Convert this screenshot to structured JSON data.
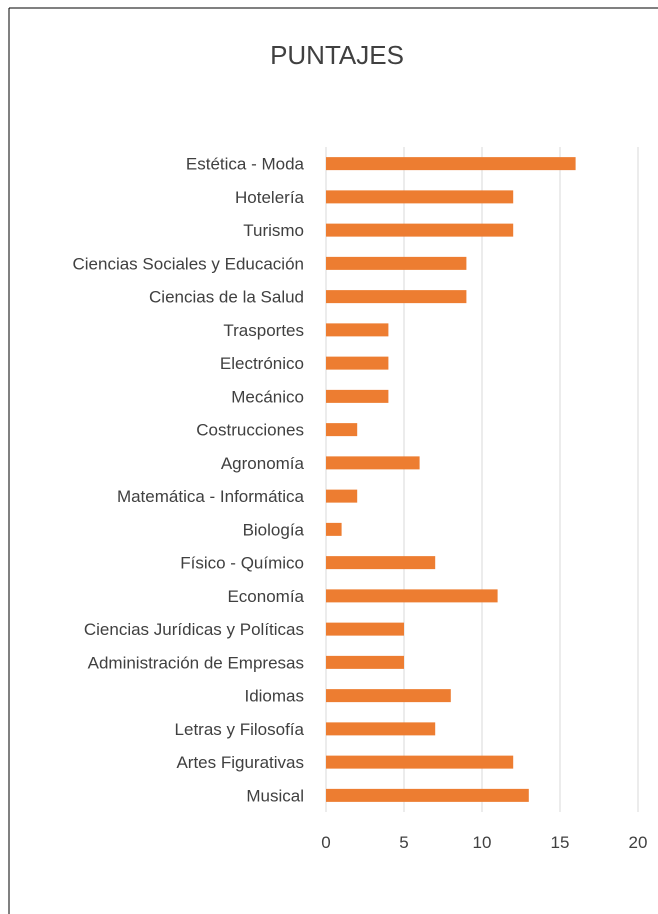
{
  "chart_data": {
    "type": "bar",
    "orientation": "horizontal",
    "title": "PUNTAJES",
    "xlabel": "",
    "ylabel": "",
    "xlim": [
      0,
      20
    ],
    "xticks": [
      0,
      5,
      10,
      15,
      20
    ],
    "grid": true,
    "bar_color": "#ed7d31",
    "categories": [
      "Estética - Moda",
      "Hotelería",
      "Turismo",
      "Ciencias Sociales y Educación",
      "Ciencias de la Salud",
      "Trasportes",
      "Electrónico",
      "Mecánico",
      "Costrucciones",
      "Agronomía",
      "Matemática - Informática",
      "Biología",
      "Físico - Químico",
      "Economía",
      "Ciencias Jurídicas y Políticas",
      "Administración de Empresas",
      "Idiomas",
      "Letras y Filosofía",
      "Artes Figurativas",
      "Musical"
    ],
    "values": [
      16,
      12,
      12,
      9,
      9,
      4,
      4,
      4,
      2,
      6,
      2,
      1,
      7,
      11,
      5,
      5,
      8,
      7,
      12,
      13
    ]
  }
}
